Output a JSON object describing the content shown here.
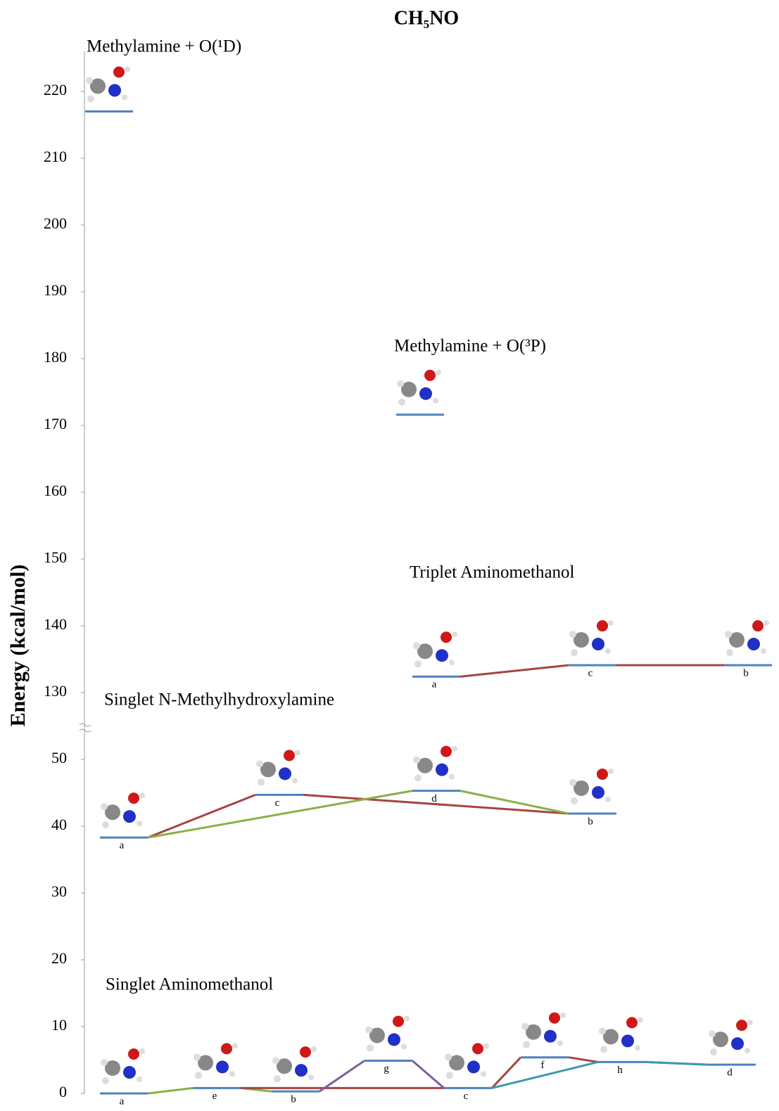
{
  "chart_data": {
    "type": "level",
    "title": "CH₅NO",
    "y_label": "Energy (kcal/mol)",
    "axes": [
      {
        "ylim": [
          0,
          52
        ],
        "yticks": [
          0,
          10,
          20,
          30,
          40,
          50
        ]
      },
      {
        "ylim": [
          127,
          226
        ],
        "yticks": [
          130,
          140,
          150,
          160,
          170,
          180,
          190,
          200,
          210,
          220
        ]
      }
    ],
    "level_color": "#4f81bd",
    "groups": [
      {
        "name": "Methylamine + O(¹D)",
        "axis": 1,
        "levels": [
          {
            "value": 217
          }
        ],
        "routes": []
      },
      {
        "name": "Methylamine + O(³P)",
        "axis": 1,
        "levels": [
          {
            "value": 171.6
          }
        ],
        "routes": []
      },
      {
        "name": "Triplet Aminomethanol",
        "axis": 1,
        "levels": [
          {
            "label": "a",
            "value": 132.4
          },
          {
            "label": "c",
            "value": 134.1
          },
          {
            "label": "b",
            "value": 134.1
          }
        ],
        "routes": [
          {
            "color": "#a5453f",
            "levels": [
              0,
              1,
              2
            ]
          }
        ]
      },
      {
        "name": "Singlet N-Methylhydroxylamine",
        "axis": 0,
        "levels": [
          {
            "label": "a",
            "value": 38.3
          },
          {
            "label": "c",
            "value": 44.7
          },
          {
            "label": "d",
            "value": 45.3
          },
          {
            "label": "b",
            "value": 41.9
          }
        ],
        "routes": [
          {
            "color": "#a5453f",
            "levels": [
              0,
              1,
              3
            ]
          },
          {
            "color": "#8caf45",
            "levels": [
              0,
              2,
              3
            ]
          }
        ]
      },
      {
        "name": "Singlet Aminomethanol",
        "axis": 0,
        "levels": [
          {
            "label": "a",
            "value": 0
          },
          {
            "label": "e",
            "value": 0.8
          },
          {
            "label": "b",
            "value": 0.3
          },
          {
            "label": "g",
            "value": 4.9
          },
          {
            "label": "c",
            "value": 0.8
          },
          {
            "label": "f",
            "value": 5.4
          },
          {
            "label": "h",
            "value": 4.7
          },
          {
            "label": "d",
            "value": 4.3
          }
        ],
        "routes": [
          {
            "color": "#8caf45",
            "levels": [
              0,
              1,
              2
            ]
          },
          {
            "color": "#a5453f",
            "levels": [
              1,
              4,
              5,
              6,
              7
            ]
          },
          {
            "color": "#7c5f9c",
            "levels": [
              2,
              3,
              4
            ]
          },
          {
            "color": "#3c9bb0",
            "levels": [
              4,
              6,
              7
            ]
          }
        ]
      }
    ]
  }
}
